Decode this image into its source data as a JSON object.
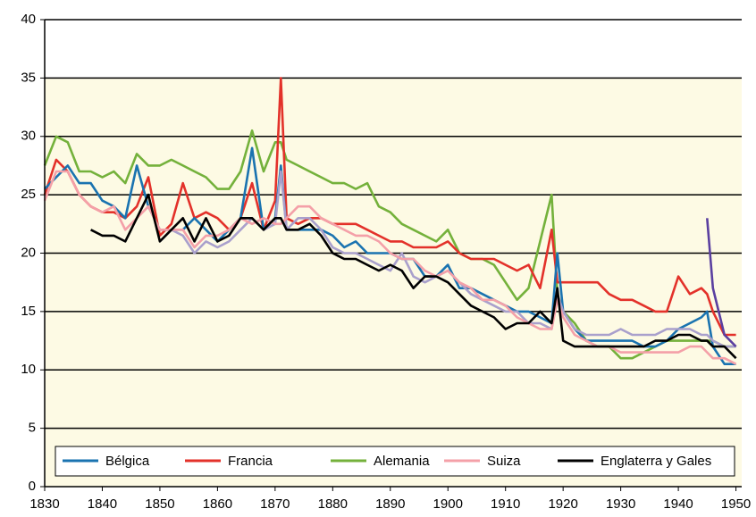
{
  "chart_data": {
    "type": "line",
    "x": [
      1830,
      1832,
      1834,
      1836,
      1838,
      1840,
      1842,
      1844,
      1846,
      1848,
      1850,
      1852,
      1854,
      1856,
      1858,
      1860,
      1862,
      1864,
      1866,
      1868,
      1870,
      1871,
      1872,
      1874,
      1876,
      1878,
      1880,
      1882,
      1884,
      1886,
      1888,
      1890,
      1892,
      1894,
      1896,
      1898,
      1900,
      1902,
      1904,
      1906,
      1908,
      1910,
      1912,
      1914,
      1916,
      1918,
      1919,
      1920,
      1922,
      1924,
      1926,
      1928,
      1930,
      1932,
      1934,
      1936,
      1938,
      1940,
      1942,
      1944,
      1945,
      1946,
      1948,
      1950
    ],
    "xlim": [
      1830,
      1951
    ],
    "xticks": [
      1830,
      1840,
      1850,
      1860,
      1870,
      1880,
      1890,
      1900,
      1910,
      1920,
      1930,
      1940,
      1950
    ],
    "ylim": [
      0,
      40
    ],
    "yticks": [
      0,
      5,
      10,
      15,
      20,
      25,
      30,
      35,
      40
    ],
    "grid": true,
    "legend": "bottom",
    "series": [
      {
        "name": "Bélgica",
        "color": "#1a73b0",
        "values": [
          25.5,
          26.5,
          27.5,
          26,
          26,
          24.5,
          24,
          23,
          27.5,
          24,
          22,
          22,
          22,
          23,
          22,
          21,
          22,
          23,
          29,
          22,
          23,
          27.5,
          22,
          22,
          22,
          22,
          21.5,
          20.5,
          21,
          20,
          20,
          20,
          19.5,
          19.5,
          18,
          18,
          19,
          17,
          17,
          16.5,
          16,
          15.5,
          15,
          15,
          14.5,
          14,
          20,
          15,
          13.5,
          12.5,
          12.5,
          12.5,
          12.5,
          12.5,
          12,
          12,
          12.5,
          13.5,
          14,
          14.5,
          15,
          12,
          10.5,
          10.5
        ]
      },
      {
        "name": "Francia",
        "color": "#e3312a",
        "values": [
          25,
          28,
          27,
          25,
          24,
          23.5,
          23.5,
          23,
          24,
          26.5,
          21.5,
          22.5,
          26,
          23,
          23.5,
          23,
          22,
          23,
          26,
          22,
          24.5,
          35,
          23,
          22.5,
          23,
          23,
          22.5,
          22.5,
          22.5,
          22,
          21.5,
          21,
          21,
          20.5,
          20.5,
          20.5,
          21,
          20,
          19.5,
          19.5,
          19.5,
          19,
          18.5,
          19,
          17,
          22,
          17.5,
          17.5,
          17.5,
          17.5,
          17.5,
          16.5,
          16,
          16,
          15.5,
          15,
          15,
          18,
          16.5,
          17,
          16.5,
          15,
          13,
          13
        ]
      },
      {
        "name": "Alemania",
        "color": "#74b13b",
        "values": [
          27.5,
          30,
          29.5,
          27,
          27,
          26.5,
          27,
          26,
          28.5,
          27.5,
          27.5,
          28,
          27.5,
          27,
          26.5,
          25.5,
          25.5,
          27,
          30.5,
          27,
          29.5,
          29.5,
          28,
          27.5,
          27,
          26.5,
          26,
          26,
          25.5,
          26,
          24,
          23.5,
          22.5,
          22,
          21.5,
          21,
          22,
          20,
          19.5,
          19.5,
          19,
          17.5,
          16,
          17,
          21,
          25,
          16.5,
          15,
          14,
          12.5,
          12,
          12,
          11,
          11,
          11.5,
          12,
          12.5,
          12.5,
          12.5,
          12.5,
          12.5,
          12.5,
          12,
          12
        ]
      },
      {
        "name": "Suiza",
        "color": "#f4a0a8",
        "values": [
          24.5,
          27,
          27,
          25,
          24,
          23.5,
          24,
          22,
          23,
          24,
          22,
          22,
          22,
          20.5,
          21.5,
          21.5,
          22,
          23,
          22.5,
          23,
          22.5,
          22.5,
          23,
          24,
          24,
          23,
          22.5,
          22,
          21.5,
          21.5,
          21,
          20,
          19.5,
          19.5,
          18.5,
          18,
          18.5,
          17.5,
          17,
          16,
          16,
          15.5,
          14.5,
          14,
          13.5,
          13.5,
          16,
          14.5,
          13,
          12.5,
          12,
          12,
          11.5,
          11.5,
          11.5,
          11.5,
          11.5,
          11.5,
          12,
          12,
          11.5,
          11,
          11,
          10.5
        ]
      },
      {
        "name": "Englaterra y Gales",
        "color": "#000000",
        "values": [
          null,
          null,
          null,
          null,
          22,
          21.5,
          21.5,
          21,
          23,
          25,
          21,
          22,
          23,
          21,
          23,
          21,
          21.5,
          23,
          23,
          22,
          23,
          23,
          22,
          22,
          22.5,
          21.5,
          20,
          19.5,
          19.5,
          19,
          18.5,
          19,
          18.5,
          17,
          18,
          18,
          17.5,
          16.5,
          15.5,
          15,
          14.5,
          13.5,
          14,
          14,
          15,
          14,
          17,
          12.5,
          12,
          12,
          12,
          12,
          12,
          12,
          12,
          12.5,
          12.5,
          13,
          13,
          12.5,
          12.5,
          12,
          12,
          11
        ]
      },
      {
        "color": "#a9a0cc",
        "values": [
          null,
          null,
          null,
          null,
          null,
          null,
          null,
          null,
          null,
          null,
          21,
          22,
          21.5,
          20,
          21,
          20.5,
          21,
          22,
          23,
          22,
          22.5,
          27,
          22,
          23,
          23,
          22,
          20.5,
          20,
          20,
          19.5,
          19,
          18.5,
          20,
          18,
          17.5,
          18,
          18.5,
          17.5,
          16.5,
          16,
          15.5,
          15,
          15,
          14,
          14,
          13.5,
          16.5,
          15,
          13.5,
          13,
          13,
          13,
          13.5,
          13,
          13,
          13,
          13.5,
          13.5,
          13.5,
          13,
          13,
          12.5,
          12,
          12
        ]
      },
      {
        "color": "#5a3fa0",
        "values": [
          null,
          null,
          null,
          null,
          null,
          null,
          null,
          null,
          null,
          null,
          null,
          null,
          null,
          null,
          null,
          null,
          null,
          null,
          null,
          null,
          null,
          null,
          null,
          null,
          null,
          null,
          null,
          null,
          null,
          null,
          null,
          null,
          null,
          null,
          null,
          null,
          null,
          null,
          null,
          null,
          null,
          null,
          null,
          null,
          null,
          null,
          null,
          null,
          null,
          null,
          null,
          null,
          null,
          null,
          null,
          null,
          null,
          null,
          null,
          null,
          23,
          17,
          13,
          12
        ]
      }
    ]
  }
}
